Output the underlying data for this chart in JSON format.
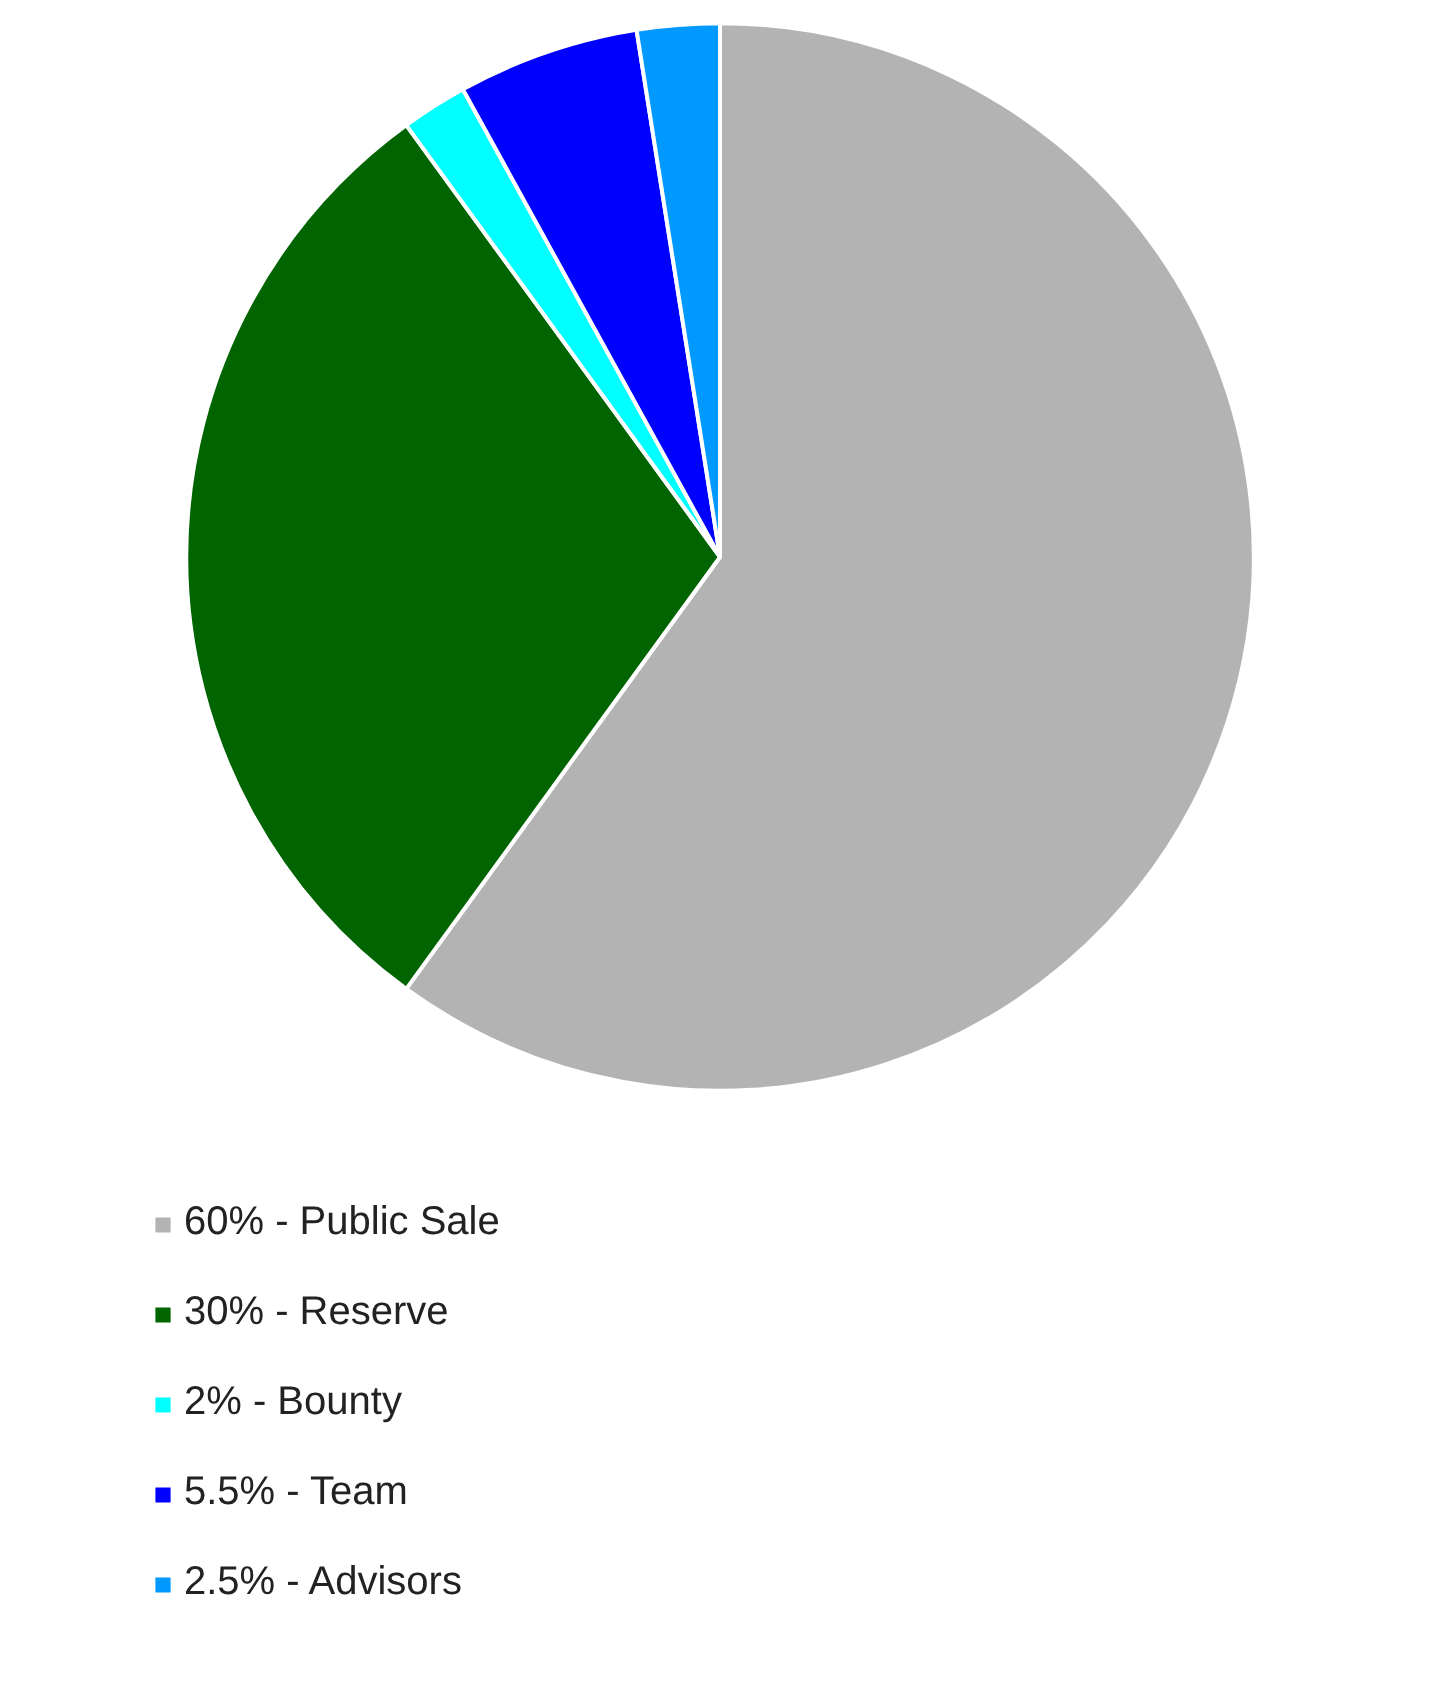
{
  "chart_data": {
    "type": "pie",
    "categories": [
      "60% - Public Sale",
      "30% - Reserve",
      "2% - Bounty",
      "5.5% - Team",
      "2.5% - Advisors"
    ],
    "values": [
      60,
      30,
      2,
      5.5,
      2.5
    ],
    "colors": [
      "#b3b3b3",
      "#006400",
      "#00ffff",
      "#0000ff",
      "#0099ff"
    ],
    "legend": "bottom left"
  }
}
